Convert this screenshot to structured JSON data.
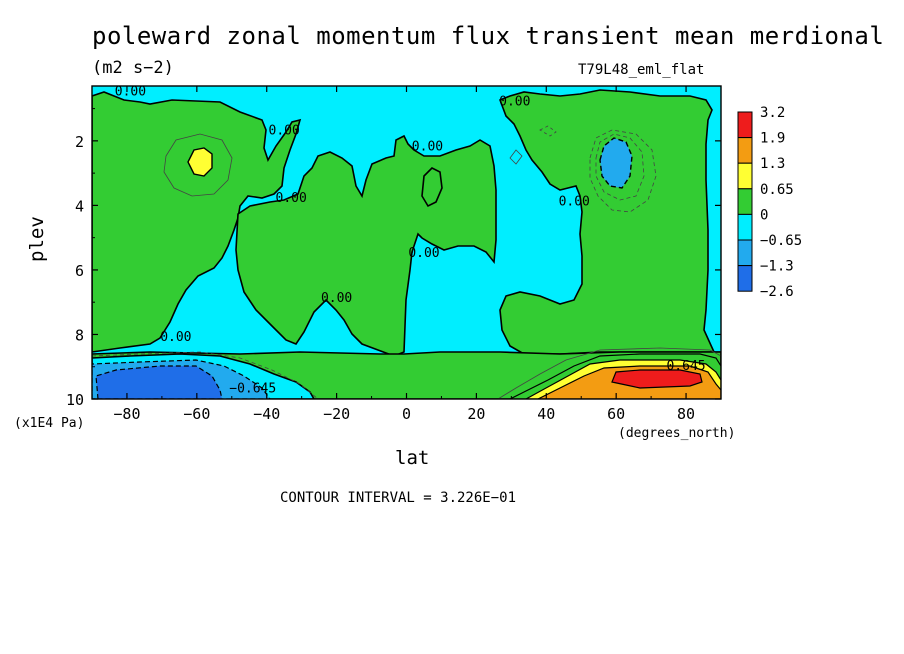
{
  "title": "poleward zonal momentum flux transient mean merdional",
  "units": "(m2 s−2)",
  "dataset": "T79L48_eml_flat",
  "contour_interval": "CONTOUR INTERVAL = 3.226E−01",
  "chart_data": {
    "type": "heatmap",
    "xlabel": "lat",
    "x_unit": "(degrees_north)",
    "ylabel": "plev",
    "y_unit": "(x1E4 Pa)",
    "xlim": [
      -90,
      90
    ],
    "ylim": [
      10,
      0.3
    ],
    "x_ticks": [
      -80,
      -60,
      -40,
      -20,
      0,
      20,
      40,
      60,
      80
    ],
    "x_tick_labels": [
      "−80",
      "−60",
      "−40",
      "−20",
      "0",
      "20",
      "40",
      "60",
      "80"
    ],
    "y_ticks": [
      2,
      4,
      6,
      8,
      10
    ],
    "y_tick_labels": [
      "2",
      "4",
      "6",
      "8",
      "10"
    ],
    "legend": {
      "placement": "right",
      "levels": [
        "3.2",
        "1.9",
        "1.3",
        "0.65",
        "0",
        "−0.65",
        "−1.3",
        "−2.6"
      ],
      "colors": [
        "#ee1c1c",
        "#f39c12",
        "#ffff33",
        "#33cc33",
        "#00eeff",
        "#22aaee",
        "#1f6ee8"
      ]
    },
    "contour_labels": [
      {
        "text": "0.00",
        "lat": -79,
        "plev": 0.6
      },
      {
        "text": "0.00",
        "lat": -35,
        "plev": 1.8
      },
      {
        "text": "0.00",
        "lat": -33,
        "plev": 3.9
      },
      {
        "text": "0.00",
        "lat": 6,
        "plev": 2.3
      },
      {
        "text": "0.00",
        "lat": 31,
        "plev": 0.9
      },
      {
        "text": "0.00",
        "lat": 5,
        "plev": 5.6
      },
      {
        "text": "0.00",
        "lat": 48,
        "plev": 4.0
      },
      {
        "text": "0.00",
        "lat": -20,
        "plev": 7.0
      },
      {
        "text": "0.00",
        "lat": -66,
        "plev": 8.2
      },
      {
        "text": "−0.645",
        "lat": -44,
        "plev": 9.8
      },
      {
        "text": "0.645",
        "lat": 80,
        "plev": 9.1
      }
    ],
    "regions": [
      {
        "level": "0.65",
        "desc": "max",
        "lat": -59,
        "plev": 2.5
      },
      {
        "level": "−0.65",
        "desc": "min",
        "lat": 60,
        "plev": 2.5
      },
      {
        "level": "−2.6",
        "desc": "min",
        "lat": -68,
        "plev": 9.4
      },
      {
        "level": "3.2",
        "desc": "max",
        "lat": 68,
        "plev": 9.3
      }
    ]
  }
}
